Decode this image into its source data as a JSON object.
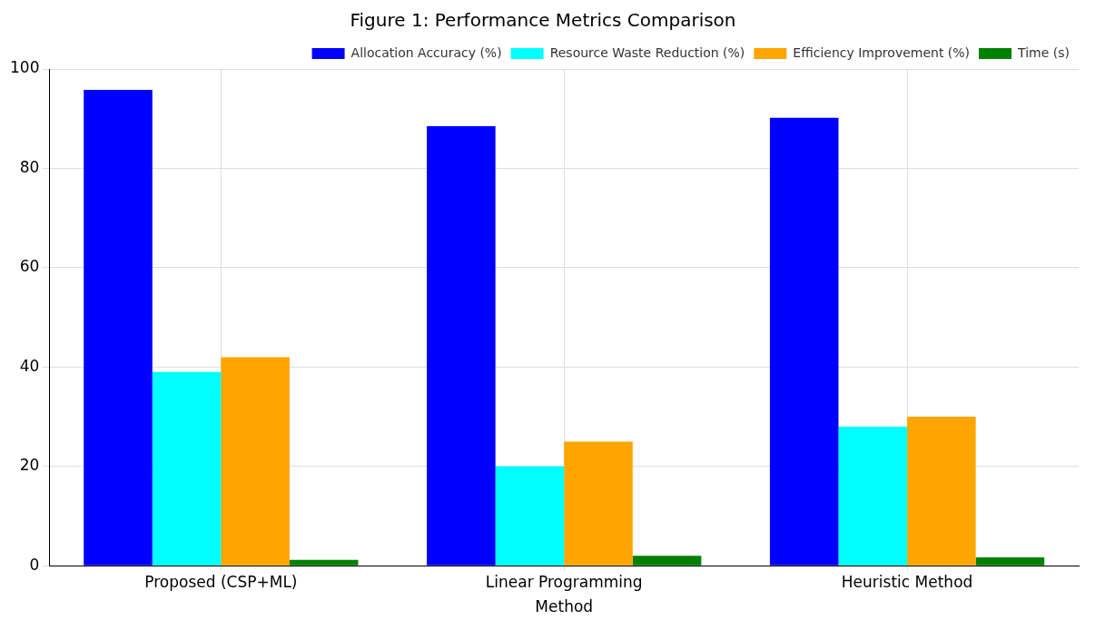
{
  "chart_data": {
    "type": "bar",
    "title": "Figure 1: Performance Metrics Comparison",
    "xlabel": "Method",
    "categories": [
      "Proposed (CSP+ML)",
      "Linear Programming",
      "Heuristic Method"
    ],
    "series": [
      {
        "name": "Allocation Accuracy (%)",
        "color": "#0000ff",
        "values": [
          95.8,
          88.5,
          90.2
        ]
      },
      {
        "name": "Resource Waste Reduction (%)",
        "color": "#00ffff",
        "values": [
          39,
          20,
          28
        ]
      },
      {
        "name": "Efficiency Improvement (%)",
        "color": "#ffa500",
        "values": [
          42,
          25,
          30
        ]
      },
      {
        "name": "Time (s)",
        "color": "#008000",
        "values": [
          1.2,
          2,
          1.7
        ]
      }
    ],
    "ylim": [
      0,
      100
    ],
    "yticks": [
      0,
      20,
      40,
      60,
      80,
      100
    ],
    "grid": true,
    "legend": "top right"
  }
}
